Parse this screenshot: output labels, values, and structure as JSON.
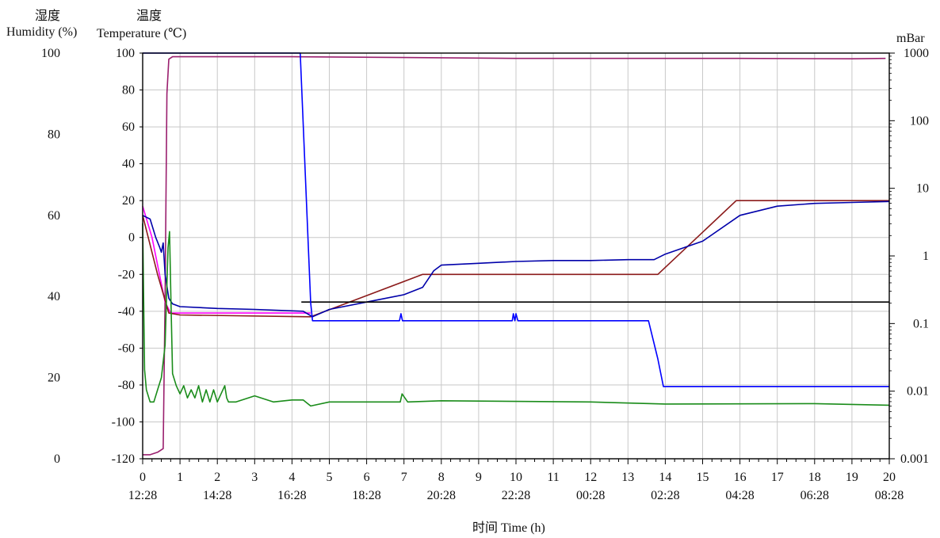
{
  "chart_data": {
    "type": "line",
    "title": "",
    "axes": {
      "humidity": {
        "label_cn": "湿度",
        "label": "Humidity (%)",
        "ylim": [
          0,
          100
        ],
        "ticks": [
          "0",
          "20",
          "40",
          "60",
          "80",
          "100"
        ]
      },
      "temperature": {
        "label_cn": "温度",
        "label": "Temperature (℃)",
        "ylim": [
          -120,
          100
        ],
        "ticks": [
          "-120",
          "-100",
          "-80",
          "-60",
          "-40",
          "-20",
          "0",
          "20",
          "40",
          "60",
          "80",
          "100"
        ]
      },
      "pressure": {
        "label": "mBar",
        "scale": "log",
        "ylim": [
          0.001,
          1000
        ],
        "ticks": [
          "0.001",
          "0.01",
          "0.1",
          "1",
          "10",
          "100",
          "1000"
        ]
      },
      "x": {
        "label": "时间 Time (h)",
        "xlim": [
          0,
          20
        ],
        "ticks": [
          "0",
          "1",
          "2",
          "3",
          "4",
          "5",
          "6",
          "7",
          "8",
          "9",
          "10",
          "11",
          "12",
          "13",
          "14",
          "15",
          "16",
          "17",
          "18",
          "19",
          "20"
        ],
        "clock_ticks": [
          "12:28",
          "14:28",
          "16:28",
          "18:28",
          "20:28",
          "22:28",
          "00:28",
          "02:28",
          "04:28",
          "06:28",
          "08:28"
        ]
      }
    },
    "grid": true,
    "legend": "none",
    "series": [
      {
        "axis": "humidity",
        "color": "#9a1f6e",
        "x": [
          0,
          0.2,
          0.4,
          0.55,
          0.6,
          0.65,
          0.7,
          0.8,
          1,
          4,
          7,
          10,
          13,
          16,
          19,
          19.9
        ],
        "y": [
          1.0,
          1.0,
          1.6,
          2.5,
          40,
          90,
          98.5,
          99.1,
          99.1,
          99.1,
          98.9,
          98.7,
          98.7,
          98.7,
          98.6,
          98.7
        ]
      },
      {
        "axis": "temperature",
        "color": "#ff00ff",
        "x": [
          0,
          0.25,
          0.45,
          0.6,
          0.75,
          1,
          4.5
        ],
        "y": [
          17,
          0,
          -20,
          -35,
          -41,
          -41,
          -41
        ]
      },
      {
        "axis": "temperature",
        "color": "#8b1a1a",
        "x": [
          0,
          0.4,
          0.7,
          1,
          4.5,
          7.5,
          13.8,
          15.9,
          20
        ],
        "y": [
          12,
          -20,
          -41,
          -42,
          -43,
          -20,
          -20,
          20,
          20
        ]
      },
      {
        "axis": "temperature",
        "color": "#0000aa",
        "x": [
          0,
          0.2,
          0.35,
          0.45,
          0.5,
          0.55,
          0.6,
          0.7,
          0.8,
          1,
          2,
          3,
          4.3,
          4.55,
          5,
          6,
          7,
          7.5,
          7.8,
          8,
          9,
          10,
          11,
          12,
          13,
          13.7,
          14,
          15,
          16,
          17,
          18,
          19,
          20
        ],
        "y": [
          12,
          10,
          0,
          -5,
          -8,
          -3,
          -20,
          -33,
          -36,
          -37.5,
          -38.5,
          -39,
          -40,
          -43,
          -39,
          -35,
          -31,
          -27,
          -18,
          -15,
          -14,
          -13,
          -12.5,
          -12.5,
          -12,
          -12,
          -9,
          -2,
          12,
          17,
          18.5,
          19,
          19.5
        ]
      },
      {
        "axis": "temperature",
        "color": "#000000",
        "x": [
          4.25,
          20
        ],
        "y": [
          -35,
          -35
        ]
      },
      {
        "axis": "pressure",
        "color": "#0000ff",
        "x": [
          0,
          4.22,
          4.5,
          4.55,
          6.88,
          6.92,
          6.96,
          7.05,
          9.9,
          9.93,
          9.97,
          10.0,
          10.05,
          13.55,
          13.8,
          13.95,
          20
        ],
        "y": [
          1000,
          1000,
          0.2,
          0.11,
          0.11,
          0.14,
          0.11,
          0.11,
          0.11,
          0.14,
          0.11,
          0.14,
          0.11,
          0.11,
          0.03,
          0.0117,
          0.0117
        ]
      },
      {
        "axis": "humidity",
        "color": "#1a8c1a",
        "x": [
          0,
          0.05,
          0.1,
          0.2,
          0.3,
          0.4,
          0.5,
          0.6,
          0.68,
          0.72,
          0.76,
          0.8,
          0.9,
          1.0,
          1.1,
          1.2,
          1.3,
          1.4,
          1.5,
          1.6,
          1.7,
          1.8,
          1.9,
          2.0,
          2.1,
          2.2,
          2.25,
          2.3,
          2.5,
          3,
          3.5,
          4,
          4.3,
          4.5,
          5,
          6,
          6.9,
          6.95,
          7.1,
          8,
          12,
          14,
          18,
          20
        ],
        "y": [
          58,
          22,
          17,
          14,
          14,
          17,
          20,
          28,
          52,
          56,
          38,
          21,
          18,
          16,
          18,
          15,
          17,
          15,
          18,
          14,
          17,
          14,
          17,
          14,
          16,
          18,
          15,
          14,
          14,
          15.5,
          14,
          14.5,
          14.5,
          13,
          14,
          14,
          14,
          16,
          14,
          14.3,
          14,
          13.5,
          13.6,
          13.2
        ]
      }
    ]
  }
}
